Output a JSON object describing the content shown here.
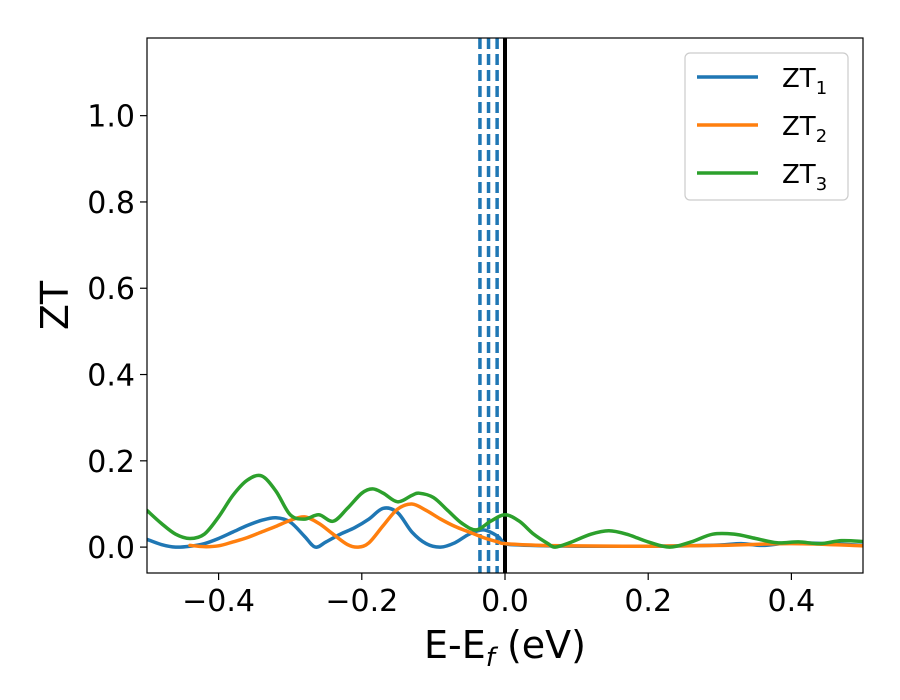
{
  "chart_data": {
    "type": "line",
    "xlabel_main": "E-E",
    "xlabel_sub": "f",
    "xlabel_unit": " (eV)",
    "ylabel": "ZT",
    "xlim": [
      -0.5,
      0.5
    ],
    "ylim": [
      -0.06,
      1.18
    ],
    "xticks": [
      -0.4,
      -0.2,
      0.0,
      0.2,
      0.4
    ],
    "xtick_labels": [
      "−0.4",
      "−0.2",
      "0.0",
      "0.2",
      "0.4"
    ],
    "yticks": [
      0.0,
      0.2,
      0.4,
      0.6,
      0.8,
      1.0
    ],
    "ytick_labels": [
      "0.0",
      "0.2",
      "0.4",
      "0.6",
      "0.8",
      "1.0"
    ],
    "grid": false,
    "legend_position": "top-right",
    "vlines": [
      {
        "x": 0.0,
        "style": "solid",
        "color": "#000000"
      },
      {
        "x": -0.035,
        "style": "dashed",
        "color": "#1f77b4"
      },
      {
        "x": -0.023,
        "style": "dashed",
        "color": "#1f77b4"
      },
      {
        "x": -0.011,
        "style": "dashed",
        "color": "#1f77b4"
      }
    ],
    "series": [
      {
        "name": "ZT",
        "sub": "1",
        "color": "#1f77b4",
        "x": [
          -0.5,
          -0.48,
          -0.46,
          -0.44,
          -0.42,
          -0.4,
          -0.38,
          -0.36,
          -0.34,
          -0.32,
          -0.3,
          -0.28,
          -0.265,
          -0.25,
          -0.23,
          -0.21,
          -0.19,
          -0.17,
          -0.15,
          -0.13,
          -0.11,
          -0.09,
          -0.07,
          -0.05,
          -0.03,
          -0.01,
          0.0,
          0.02,
          0.06,
          0.1,
          0.15,
          0.2,
          0.25,
          0.3,
          0.33,
          0.36,
          0.4,
          0.45,
          0.5
        ],
        "y": [
          0.018,
          0.006,
          0.0,
          0.002,
          0.008,
          0.02,
          0.035,
          0.05,
          0.062,
          0.068,
          0.058,
          0.025,
          0.0,
          0.012,
          0.03,
          0.045,
          0.065,
          0.09,
          0.08,
          0.035,
          0.008,
          0.0,
          0.01,
          0.03,
          0.04,
          0.025,
          0.008,
          0.005,
          0.003,
          0.002,
          0.002,
          0.002,
          0.003,
          0.005,
          0.008,
          0.004,
          0.01,
          0.008,
          0.004
        ]
      },
      {
        "name": "ZT",
        "sub": "2",
        "color": "#ff7f0e",
        "x": [
          -0.44,
          -0.42,
          -0.4,
          -0.38,
          -0.36,
          -0.34,
          -0.32,
          -0.3,
          -0.28,
          -0.26,
          -0.24,
          -0.22,
          -0.205,
          -0.19,
          -0.17,
          -0.15,
          -0.13,
          -0.11,
          -0.09,
          -0.07,
          -0.05,
          -0.03,
          -0.01,
          0.0,
          0.05,
          0.1,
          0.2,
          0.3,
          0.4,
          0.5
        ],
        "y": [
          0.004,
          0.001,
          0.003,
          0.012,
          0.022,
          0.035,
          0.048,
          0.062,
          0.07,
          0.055,
          0.03,
          0.006,
          0.0,
          0.01,
          0.05,
          0.088,
          0.1,
          0.085,
          0.065,
          0.048,
          0.035,
          0.022,
          0.012,
          0.008,
          0.004,
          0.003,
          0.002,
          0.004,
          0.008,
          0.003
        ]
      },
      {
        "name": "ZT",
        "sub": "3",
        "color": "#2ca02c",
        "x": [
          -0.5,
          -0.48,
          -0.46,
          -0.44,
          -0.42,
          -0.4,
          -0.38,
          -0.36,
          -0.34,
          -0.32,
          -0.3,
          -0.28,
          -0.26,
          -0.24,
          -0.22,
          -0.2,
          -0.185,
          -0.17,
          -0.15,
          -0.13,
          -0.12,
          -0.1,
          -0.08,
          -0.06,
          -0.04,
          -0.02,
          0.0,
          0.02,
          0.04,
          0.06,
          0.07,
          0.09,
          0.12,
          0.145,
          0.17,
          0.2,
          0.23,
          0.26,
          0.29,
          0.32,
          0.35,
          0.38,
          0.41,
          0.44,
          0.47,
          0.5
        ],
        "y": [
          0.085,
          0.055,
          0.03,
          0.02,
          0.03,
          0.07,
          0.12,
          0.155,
          0.165,
          0.13,
          0.075,
          0.065,
          0.075,
          0.06,
          0.09,
          0.125,
          0.135,
          0.125,
          0.105,
          0.12,
          0.125,
          0.115,
          0.085,
          0.055,
          0.04,
          0.06,
          0.075,
          0.06,
          0.03,
          0.008,
          0.0,
          0.01,
          0.03,
          0.038,
          0.03,
          0.012,
          0.0,
          0.012,
          0.03,
          0.03,
          0.02,
          0.01,
          0.012,
          0.008,
          0.015,
          0.013
        ]
      }
    ]
  }
}
